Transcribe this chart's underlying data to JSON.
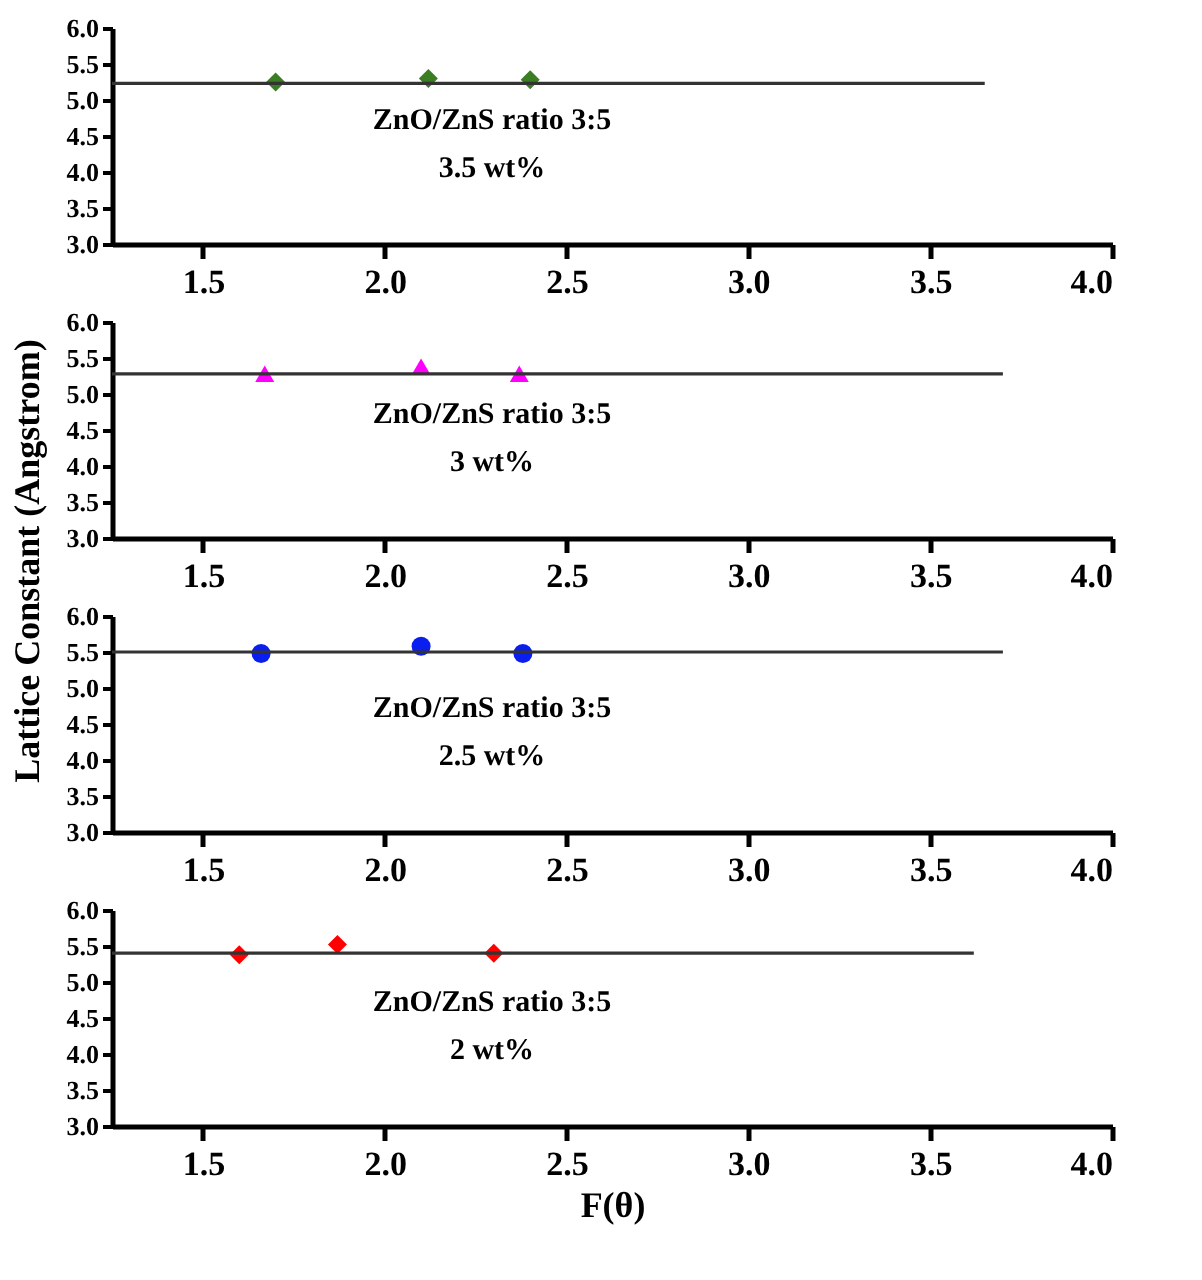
{
  "chart_data": [
    {
      "type": "scatter",
      "ylabel": "Lattice Constant (Angstrom)",
      "xlim": [
        1.25,
        4.0
      ],
      "ylim": [
        3.0,
        6.0
      ],
      "xticks": [
        1.5,
        {
          "value": 2,
          "label": "2.0"
        },
        2.5,
        {
          "value": 3,
          "label": "3.0"
        },
        3.5,
        {
          "value": 4,
          "label": "4.0"
        }
      ],
      "yticks": [
        {
          "value": 3,
          "label": "3.0"
        },
        3.5,
        {
          "value": 4,
          "label": "4.0"
        },
        4.5,
        {
          "value": 5,
          "label": "5.0"
        },
        5.5,
        {
          "value": 6,
          "label": "6.0"
        }
      ],
      "grid": false,
      "annotations": [
        "ZnO/ZnS ratio 3:5",
        "3.5 wt%"
      ],
      "series": [
        {
          "type": "scatter",
          "color": "#3a7d22",
          "marker": "diamond",
          "x": [
            1.7,
            2.12,
            2.4
          ],
          "values": [
            5.25,
            5.3,
            5.28
          ]
        },
        {
          "type": "line",
          "color": "#333333",
          "marker": "none",
          "x": [
            1.25,
            3.65
          ],
          "values": [
            5.23,
            5.23
          ]
        }
      ]
    },
    {
      "type": "scatter",
      "xlim": [
        1.25,
        4.0
      ],
      "ylim": [
        3.0,
        6.0
      ],
      "xticks": [
        1.5,
        {
          "value": 2,
          "label": "2.0"
        },
        2.5,
        {
          "value": 3,
          "label": "3.0"
        },
        3.5,
        {
          "value": 4,
          "label": "4.0"
        }
      ],
      "yticks": [
        {
          "value": 3,
          "label": "3.0"
        },
        3.5,
        {
          "value": 4,
          "label": "4.0"
        },
        4.5,
        {
          "value": 5,
          "label": "5.0"
        },
        5.5,
        {
          "value": 6,
          "label": "6.0"
        }
      ],
      "grid": false,
      "annotations": [
        "ZnO/ZnS ratio 3:5",
        "3 wt%"
      ],
      "series": [
        {
          "type": "scatter",
          "color": "#ff00ff",
          "marker": "triangle",
          "x": [
            1.67,
            2.1,
            2.37
          ],
          "values": [
            5.28,
            5.38,
            5.28
          ]
        },
        {
          "type": "line",
          "color": "#333333",
          "marker": "none",
          "x": [
            1.25,
            3.7
          ],
          "values": [
            5.28,
            5.28
          ]
        }
      ]
    },
    {
      "type": "scatter",
      "xlim": [
        1.25,
        4.0
      ],
      "ylim": [
        3.0,
        6.0
      ],
      "xticks": [
        1.5,
        {
          "value": 2,
          "label": "2.0"
        },
        2.5,
        {
          "value": 3,
          "label": "3.0"
        },
        3.5,
        {
          "value": 4,
          "label": "4.0"
        }
      ],
      "yticks": [
        {
          "value": 3,
          "label": "3.0"
        },
        3.5,
        {
          "value": 4,
          "label": "4.0"
        },
        4.5,
        {
          "value": 5,
          "label": "5.0"
        },
        5.5,
        {
          "value": 6,
          "label": "6.0"
        }
      ],
      "grid": false,
      "annotations": [
        "ZnO/ZnS ratio 3:5",
        "2.5 wt%"
      ],
      "series": [
        {
          "type": "scatter",
          "color": "#0a1ef0",
          "marker": "circle",
          "x": [
            1.66,
            2.1,
            2.38
          ],
          "values": [
            5.48,
            5.58,
            5.48
          ]
        },
        {
          "type": "line",
          "color": "#333333",
          "marker": "none",
          "x": [
            1.25,
            3.7
          ],
          "values": [
            5.5,
            5.5
          ]
        }
      ]
    },
    {
      "type": "scatter",
      "xlabel": "F(θ)",
      "xlim": [
        1.25,
        4.0
      ],
      "ylim": [
        3.0,
        6.0
      ],
      "xticks": [
        1.5,
        {
          "value": 2,
          "label": "2.0"
        },
        2.5,
        {
          "value": 3,
          "label": "3.0"
        },
        3.5,
        {
          "value": 4,
          "label": "4.0"
        }
      ],
      "yticks": [
        {
          "value": 3,
          "label": "3.0"
        },
        3.5,
        {
          "value": 4,
          "label": "4.0"
        },
        4.5,
        {
          "value": 5,
          "label": "5.0"
        },
        5.5,
        {
          "value": 6,
          "label": "6.0"
        }
      ],
      "grid": false,
      "annotations": [
        "ZnO/ZnS ratio 3:5",
        "2 wt%"
      ],
      "series": [
        {
          "type": "scatter",
          "color": "#ff0000",
          "marker": "diamond",
          "x": [
            1.6,
            1.87,
            2.3
          ],
          "values": [
            5.38,
            5.52,
            5.4
          ]
        },
        {
          "type": "line",
          "color": "#333333",
          "marker": "none",
          "x": [
            1.25,
            3.62
          ],
          "values": [
            5.4,
            5.4
          ]
        }
      ]
    }
  ]
}
